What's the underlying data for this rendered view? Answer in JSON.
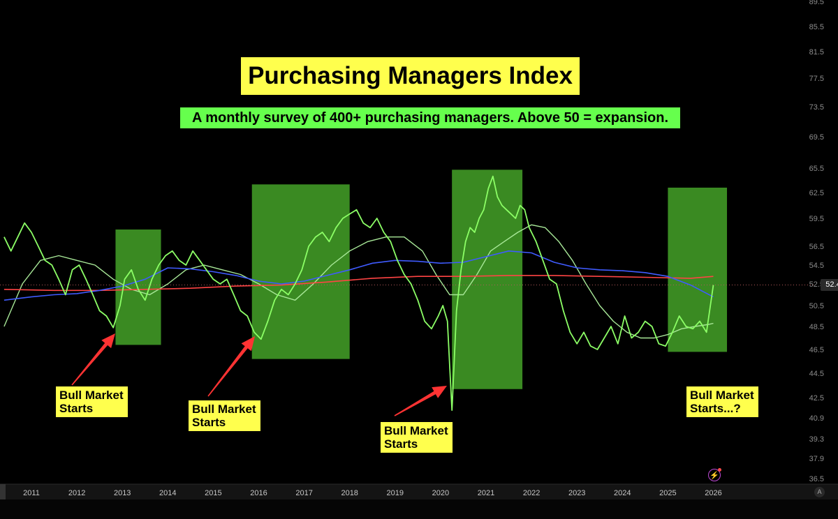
{
  "title": "Purchasing Managers Index",
  "subtitle": "A monthly survey of 400+ purchasing managers. Above 50 = expansion.",
  "current_value_label": "52.4",
  "axis_auto_label": "A",
  "annotations": [
    {
      "text": "Bull Market Starts",
      "line1": "Bull Market",
      "line2": "Starts"
    },
    {
      "text": "Bull Market Starts",
      "line1": "Bull Market",
      "line2": "Starts"
    },
    {
      "text": "Bull Market Starts",
      "line1": "Bull Market",
      "line2": "Starts"
    },
    {
      "text": "Bull Market Starts...?",
      "line1": "Bull Market",
      "line2": "Starts...?"
    }
  ],
  "colors": {
    "background": "#000000",
    "pmi": "#8cff66",
    "fast_ma": "#a8e898",
    "medium_ma": "#3f5bff",
    "slow_ma": "#ff4444",
    "zone": "#3a8a22",
    "label_bg": "#ffff4d",
    "subtitle_bg": "#66ff4d",
    "arrow": "#ff3333"
  },
  "icons": [
    "lightning-icon",
    "auto-scale-icon"
  ],
  "chart_data": {
    "type": "line",
    "x_ticks": [
      "2011",
      "2012",
      "2013",
      "2014",
      "2015",
      "2016",
      "2017",
      "2018",
      "2019",
      "2020",
      "2021",
      "2022",
      "2023",
      "2024",
      "2025",
      "2026"
    ],
    "y_ticks": [
      "36.5",
      "37.9",
      "39.3",
      "40.9",
      "42.5",
      "44.5",
      "46.5",
      "48.5",
      "50.5",
      "52.5",
      "54.5",
      "56.5",
      "59.5",
      "62.5",
      "65.5",
      "69.5",
      "73.5",
      "77.5",
      "81.5",
      "85.5",
      "89.5"
    ],
    "reference_line": 52.4,
    "highlight_zones": [
      {
        "x_start": 2012.85,
        "x_end": 2013.85,
        "y_low": 46.9,
        "y_high": 58.3
      },
      {
        "x_start": 2015.85,
        "x_end": 2018.0,
        "y_low": 45.7,
        "y_high": 63.5
      },
      {
        "x_start": 2020.25,
        "x_end": 2021.8,
        "y_low": 43.2,
        "y_high": 65.3
      },
      {
        "x_start": 2025.0,
        "x_end": 2026.3,
        "y_low": 46.3,
        "y_high": 63.1
      }
    ],
    "series": [
      {
        "x": [
          2010.4,
          2010.55,
          2010.7,
          2010.85,
          2011.0,
          2011.15,
          2011.3,
          2011.45,
          2011.6,
          2011.75,
          2011.9,
          2012.05,
          2012.2,
          2012.35,
          2012.5,
          2012.65,
          2012.8,
          2012.95,
          2013.05,
          2013.2,
          2013.35,
          2013.5,
          2013.65,
          2013.8,
          2013.95,
          2014.1,
          2014.25,
          2014.4,
          2014.55,
          2014.7,
          2014.85,
          2015.0,
          2015.15,
          2015.3,
          2015.45,
          2015.6,
          2015.75,
          2015.9,
          2016.05,
          2016.2,
          2016.35,
          2016.5,
          2016.65,
          2016.8,
          2016.95,
          2017.1,
          2017.25,
          2017.4,
          2017.55,
          2017.7,
          2017.85,
          2018.0,
          2018.15,
          2018.3,
          2018.45,
          2018.6,
          2018.75,
          2018.9,
          2019.05,
          2019.2,
          2019.35,
          2019.5,
          2019.65,
          2019.8,
          2019.95,
          2020.05,
          2020.15,
          2020.25,
          2020.35,
          2020.45,
          2020.55,
          2020.65,
          2020.75,
          2020.85,
          2020.95,
          2021.05,
          2021.15,
          2021.25,
          2021.35,
          2021.45,
          2021.55,
          2021.65,
          2021.75,
          2021.85,
          2021.95,
          2022.1,
          2022.25,
          2022.4,
          2022.55,
          2022.7,
          2022.85,
          2023.0,
          2023.15,
          2023.3,
          2023.45,
          2023.6,
          2023.75,
          2023.9,
          2024.05,
          2024.2,
          2024.35,
          2024.5,
          2024.65,
          2024.8,
          2024.95,
          2025.1,
          2025.25,
          2025.4,
          2025.55,
          2025.7,
          2025.85,
          2026.0
        ],
        "y": [
          57.5,
          56.0,
          57.5,
          59.0,
          58.0,
          56.5,
          55.0,
          54.5,
          53.0,
          51.5,
          54.0,
          54.5,
          53.0,
          51.5,
          50.0,
          49.5,
          48.4,
          50.5,
          53.0,
          54.0,
          52.0,
          51.0,
          53.0,
          54.5,
          55.5,
          56.0,
          55.0,
          54.5,
          56.0,
          55.0,
          54.0,
          53.0,
          52.5,
          53.0,
          51.5,
          50.0,
          49.5,
          48.0,
          47.4,
          49.0,
          51.0,
          52.0,
          51.5,
          52.5,
          54.0,
          56.5,
          57.5,
          58.0,
          57.0,
          58.5,
          59.5,
          60.0,
          60.5,
          59.0,
          58.5,
          59.5,
          58.0,
          57.0,
          55.0,
          53.5,
          52.5,
          51.0,
          49.0,
          48.3,
          49.5,
          50.5,
          49.0,
          41.5,
          50.0,
          54.0,
          57.0,
          58.5,
          58.0,
          59.5,
          60.5,
          63.0,
          64.5,
          62.0,
          61.0,
          60.5,
          60.0,
          59.5,
          61.0,
          60.5,
          58.5,
          57.0,
          55.0,
          53.0,
          52.5,
          50.0,
          48.0,
          47.0,
          48.0,
          46.8,
          46.5,
          47.5,
          48.5,
          47.0,
          49.5,
          47.5,
          48.0,
          49.0,
          48.5,
          47.0,
          46.8,
          48.0,
          49.5,
          48.5,
          48.3,
          49.0,
          48.0,
          52.4
        ]
      },
      {
        "x": [
          2010.4,
          2010.8,
          2011.2,
          2011.6,
          2012.0,
          2012.4,
          2012.8,
          2013.2,
          2013.6,
          2014.0,
          2014.4,
          2014.8,
          2015.2,
          2015.6,
          2016.0,
          2016.4,
          2016.8,
          2017.2,
          2017.6,
          2018.0,
          2018.4,
          2018.8,
          2019.2,
          2019.6,
          2019.9,
          2020.2,
          2020.5,
          2020.8,
          2021.1,
          2021.4,
          2021.7,
          2022.0,
          2022.3,
          2022.6,
          2022.9,
          2023.2,
          2023.5,
          2023.8,
          2024.1,
          2024.4,
          2024.7,
          2025.0,
          2025.3,
          2025.6,
          2025.9,
          2026.0
        ],
        "y": [
          48.5,
          52.5,
          55.0,
          55.5,
          55.0,
          54.5,
          53.0,
          52.0,
          51.5,
          52.5,
          54.0,
          54.5,
          54.0,
          53.5,
          52.5,
          51.5,
          51.0,
          52.5,
          54.5,
          56.0,
          57.0,
          57.5,
          57.5,
          56.0,
          53.5,
          51.5,
          51.5,
          53.5,
          56.0,
          57.0,
          58.0,
          58.8,
          58.5,
          57.0,
          55.0,
          52.5,
          50.5,
          49.0,
          48.0,
          47.5,
          47.5,
          47.8,
          48.3,
          48.5,
          48.7,
          48.8
        ]
      },
      {
        "x": [
          2010.4,
          2011.0,
          2011.5,
          2012.0,
          2012.5,
          2013.0,
          2013.5,
          2014.0,
          2014.5,
          2015.0,
          2015.5,
          2016.0,
          2016.5,
          2017.0,
          2017.5,
          2018.0,
          2018.5,
          2019.0,
          2019.5,
          2020.0,
          2020.5,
          2021.0,
          2021.5,
          2022.0,
          2022.5,
          2023.0,
          2023.5,
          2024.0,
          2024.5,
          2025.0,
          2025.5,
          2026.0
        ],
        "y": [
          51.0,
          51.3,
          51.5,
          51.6,
          51.9,
          52.3,
          53.0,
          54.2,
          54.1,
          53.8,
          53.4,
          52.8,
          52.5,
          52.8,
          53.4,
          54.0,
          54.7,
          55.0,
          54.9,
          54.7,
          54.8,
          55.4,
          56.0,
          55.8,
          54.8,
          54.2,
          54.0,
          53.9,
          53.7,
          53.3,
          52.4,
          51.3
        ]
      },
      {
        "x": [
          2010.4,
          2011.5,
          2012.5,
          2013.5,
          2014.5,
          2015.5,
          2016.5,
          2017.5,
          2018.5,
          2019.5,
          2020.5,
          2021.5,
          2022.5,
          2023.5,
          2024.5,
          2025.5,
          2026.0
        ],
        "y": [
          52.0,
          51.9,
          51.9,
          52.0,
          52.1,
          52.3,
          52.4,
          52.7,
          53.1,
          53.3,
          53.3,
          53.4,
          53.4,
          53.3,
          53.2,
          53.1,
          53.3
        ]
      }
    ]
  }
}
